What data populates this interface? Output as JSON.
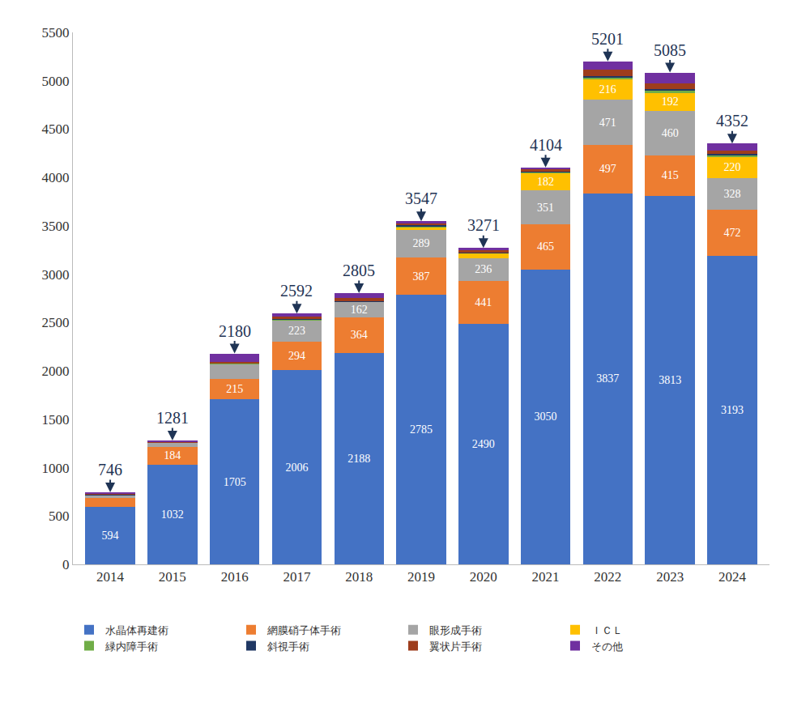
{
  "chart_data": {
    "type": "bar",
    "stacked": true,
    "categories": [
      "2014",
      "2015",
      "2016",
      "2017",
      "2018",
      "2019",
      "2020",
      "2021",
      "2022",
      "2023",
      "2024"
    ],
    "ylim": [
      0,
      5500
    ],
    "yticks": [
      0,
      500,
      1000,
      1500,
      2000,
      2500,
      3000,
      3500,
      4000,
      4500,
      5000,
      5500
    ],
    "grid": false,
    "legend": "bottom",
    "totals": [
      746,
      1281,
      2180,
      2592,
      2805,
      3547,
      3271,
      4104,
      5201,
      5085,
      4352
    ],
    "series": [
      {
        "name": "水晶体再建術",
        "color": "#4472c4",
        "data_labels": true,
        "values": [
          594,
          1032,
          1705,
          2006,
          2188,
          2785,
          2490,
          3050,
          3837,
          3813,
          3193
        ]
      },
      {
        "name": "網膜硝子体手術",
        "color": "#ed7d31",
        "data_labels": true,
        "values": [
          96,
          184,
          215,
          294,
          364,
          387,
          441,
          465,
          497,
          415,
          472
        ],
        "value_labels": [
          null,
          "184",
          "215",
          "294",
          "364",
          "387",
          "441",
          "465",
          "497",
          "415",
          "472"
        ]
      },
      {
        "name": "眼形成手術",
        "color": "#a5a5a5",
        "data_labels": true,
        "values": [
          28,
          45,
          155,
          223,
          162,
          289,
          236,
          351,
          471,
          460,
          328
        ],
        "value_labels": [
          null,
          null,
          null,
          "223",
          "162",
          "289",
          "236",
          "351",
          "471",
          "460",
          "328"
        ]
      },
      {
        "name": "ＩＣＬ",
        "color": "#ffc000",
        "data_labels": true,
        "values": [
          0,
          0,
          0,
          5,
          0,
          25,
          50,
          182,
          216,
          192,
          220
        ],
        "value_labels": [
          null,
          null,
          null,
          null,
          null,
          null,
          null,
          "182",
          "216",
          "192",
          "220"
        ]
      },
      {
        "name": "緑内障手術",
        "color": "#70ad47",
        "data_labels": false,
        "values": [
          0,
          0,
          3,
          5,
          3,
          8,
          5,
          5,
          15,
          15,
          20
        ]
      },
      {
        "name": "斜視手術",
        "color": "#203864",
        "data_labels": false,
        "values": [
          3,
          0,
          5,
          5,
          5,
          10,
          8,
          10,
          10,
          20,
          15
        ]
      },
      {
        "name": "翼状片手術",
        "color": "#9e3d1d",
        "data_labels": false,
        "values": [
          10,
          8,
          12,
          20,
          30,
          20,
          15,
          30,
          70,
          60,
          30
        ]
      },
      {
        "name": "その他",
        "color": "#7030a0",
        "data_labels": false,
        "values": [
          15,
          12,
          85,
          34,
          53,
          23,
          26,
          11,
          85,
          110,
          74
        ]
      }
    ]
  }
}
